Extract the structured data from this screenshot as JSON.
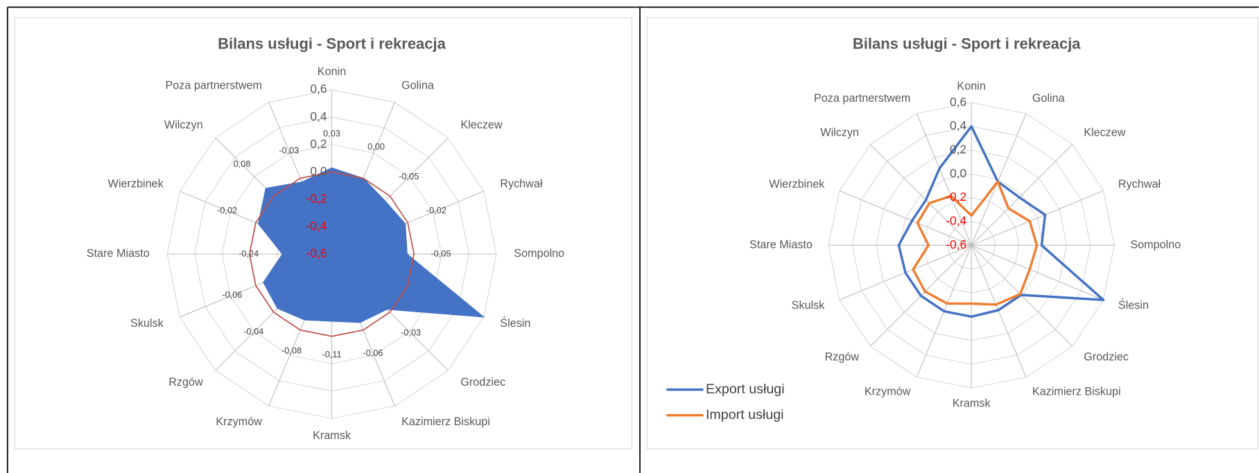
{
  "chart_data": [
    {
      "type": "radar",
      "title": "Bilans usługi - Sport i rekreacja",
      "categories": [
        "Konin",
        "Golina",
        "Kleczew",
        "Rychwał",
        "Sompolno",
        "Ślesin",
        "Grodziec",
        "Kazimierz Biskupi",
        "Kramsk",
        "Krzymów",
        "Rzgów",
        "Skulsk",
        "Stare Miasto",
        "Wierzbinek",
        "Wilczyn",
        "Poza partnerstwem"
      ],
      "values": [
        0.03,
        0.0,
        -0.05,
        -0.02,
        -0.05,
        0.6,
        -0.03,
        -0.06,
        -0.11,
        -0.08,
        -0.04,
        -0.06,
        -0.24,
        -0.02,
        0.08,
        -0.03
      ],
      "value_labels": [
        "0,03",
        "0,00",
        "-0,05",
        "-0,02",
        "-0,05",
        null,
        "-0,03",
        "-0,06",
        "-0,11",
        "-0,08",
        "-0,04",
        "-0,06",
        "-0,24",
        "-0,02",
        "0,08",
        "-0,03"
      ],
      "color": "#4472c4",
      "filled": true,
      "zero_ring_color": "#c0504d",
      "negative_tick_color": "#ff0000",
      "ylim": [
        -0.6,
        0.6
      ],
      "yticks": [
        {
          "value": -0.6,
          "label": "-0,6"
        },
        {
          "value": -0.4,
          "label": "-0,4"
        },
        {
          "value": -0.2,
          "label": "-0,2"
        },
        {
          "value": 0,
          "label": "0,0"
        },
        {
          "value": 0.2,
          "label": "0,2"
        },
        {
          "value": 0.4,
          "label": "0,4"
        },
        {
          "value": 0.6,
          "label": "0,6"
        }
      ],
      "grid": true
    },
    {
      "type": "radar",
      "title": "Bilans usługi - Sport i rekreacja",
      "categories": [
        "Konin",
        "Golina",
        "Kleczew",
        "Rychwał",
        "Sompolno",
        "Ślesin",
        "Grodziec",
        "Kazimierz Biskupi",
        "Kramsk",
        "Krzymów",
        "Rzgów",
        "Skulsk",
        "Stare Miasto",
        "Wierzbinek",
        "Wilczyn",
        "Poza partnerstwem"
      ],
      "series": [
        {
          "name": "Export usługi",
          "color": "#4472c4",
          "values": [
            0.4,
            -0.02,
            -0.03,
            0.07,
            -0.01,
            0.6,
            -0.01,
            -0.01,
            0.0,
            0.0,
            0.0,
            0.0,
            0.01,
            -0.06,
            -0.06,
            0.1
          ]
        },
        {
          "name": "Import usługi",
          "color": "#ed7d31",
          "values": [
            -0.35,
            -0.02,
            -0.16,
            -0.07,
            -0.05,
            -0.07,
            -0.02,
            -0.06,
            -0.11,
            -0.07,
            -0.05,
            -0.07,
            -0.24,
            -0.11,
            -0.1,
            -0.15
          ]
        }
      ],
      "negative_tick_color": "#ff0000",
      "ylim": [
        -0.6,
        0.6
      ],
      "yticks": [
        {
          "value": -0.6,
          "label": "-0,6"
        },
        {
          "value": -0.4,
          "label": "-0,4"
        },
        {
          "value": -0.2,
          "label": "-0,2"
        },
        {
          "value": 0,
          "label": "0,0"
        },
        {
          "value": 0.2,
          "label": "0,2"
        },
        {
          "value": 0.4,
          "label": "0,4"
        },
        {
          "value": 0.6,
          "label": "0,6"
        }
      ],
      "grid": true,
      "legend": "lower left"
    }
  ]
}
